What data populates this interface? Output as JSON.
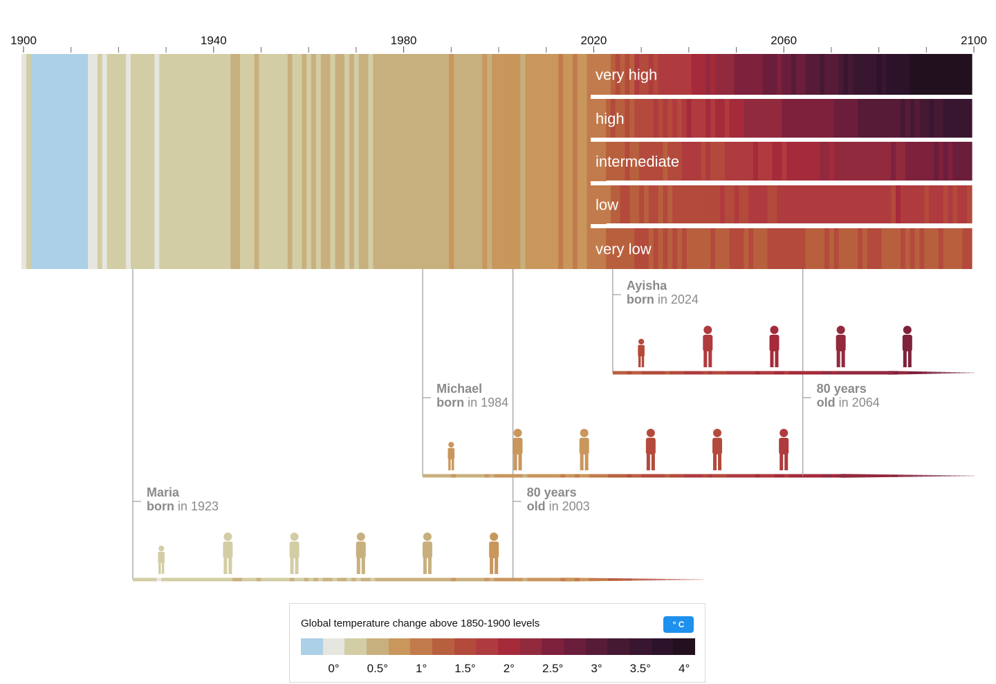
{
  "chart_data": {
    "type": "heatmap",
    "title": "",
    "x_axis": {
      "min": 1900,
      "max": 2100,
      "tick_labels": [
        1900,
        1940,
        1980,
        2020,
        2060,
        2100
      ],
      "minor_ticks": [
        1910,
        1920,
        1930,
        1950,
        1960,
        1970,
        1990,
        2000,
        2010,
        2030,
        2040,
        2050,
        2070,
        2080,
        2090
      ]
    },
    "observed_period": [
      1900,
      2023
    ],
    "scenarios": [
      {
        "name": "very high",
        "end_value": 4.4
      },
      {
        "name": "high",
        "end_value": 3.6
      },
      {
        "name": "intermediate",
        "end_value": 2.7
      },
      {
        "name": "low",
        "end_value": 1.8
      },
      {
        "name": "very low",
        "end_value": 1.4
      }
    ],
    "people": [
      {
        "name": "Maria",
        "born_label": "born",
        "born_in": "in 1923",
        "born_year": 1923,
        "old_label": "80 years",
        "old_sub_label": "old",
        "old_in": "in 2003",
        "old_year": 2003,
        "bar_end_year": 2043
      },
      {
        "name": "Michael",
        "born_label": "born",
        "born_in": "in 1984",
        "born_year": 1984,
        "old_label": "80 years",
        "old_sub_label": "old",
        "old_in": "in 2064",
        "old_year": 2064,
        "bar_end_year": 2100
      },
      {
        "name": "Ayisha",
        "born_label": "born",
        "born_in": "in 2024",
        "born_year": 2024,
        "old_label": "",
        "old_sub_label": "",
        "old_in": "",
        "old_year": null,
        "bar_end_year": 2100
      }
    ],
    "legend": {
      "title": "Global temperature change above 1850-1900 levels",
      "unit_button": "° C",
      "tick_labels": [
        "0°",
        "0.5°",
        "1°",
        "1.5°",
        "2°",
        "2.5°",
        "3°",
        "3.5°",
        "4°"
      ],
      "tick_values": [
        0,
        0.5,
        1,
        1.5,
        2,
        2.5,
        3,
        3.5,
        4
      ],
      "bin_min": -0.375,
      "bin_step": 0.25,
      "colors": [
        "#acd0e6",
        "#e6e6e0",
        "#d3cda5",
        "#c8b07e",
        "#c9965c",
        "#c27b4c",
        "#b8603e",
        "#b34a3c",
        "#af3b3f",
        "#a52a3a",
        "#922a3e",
        "#7e213c",
        "#6b1e3b",
        "#571b38",
        "#461933",
        "#39162f",
        "#2c132a",
        "#22101f"
      ]
    }
  }
}
